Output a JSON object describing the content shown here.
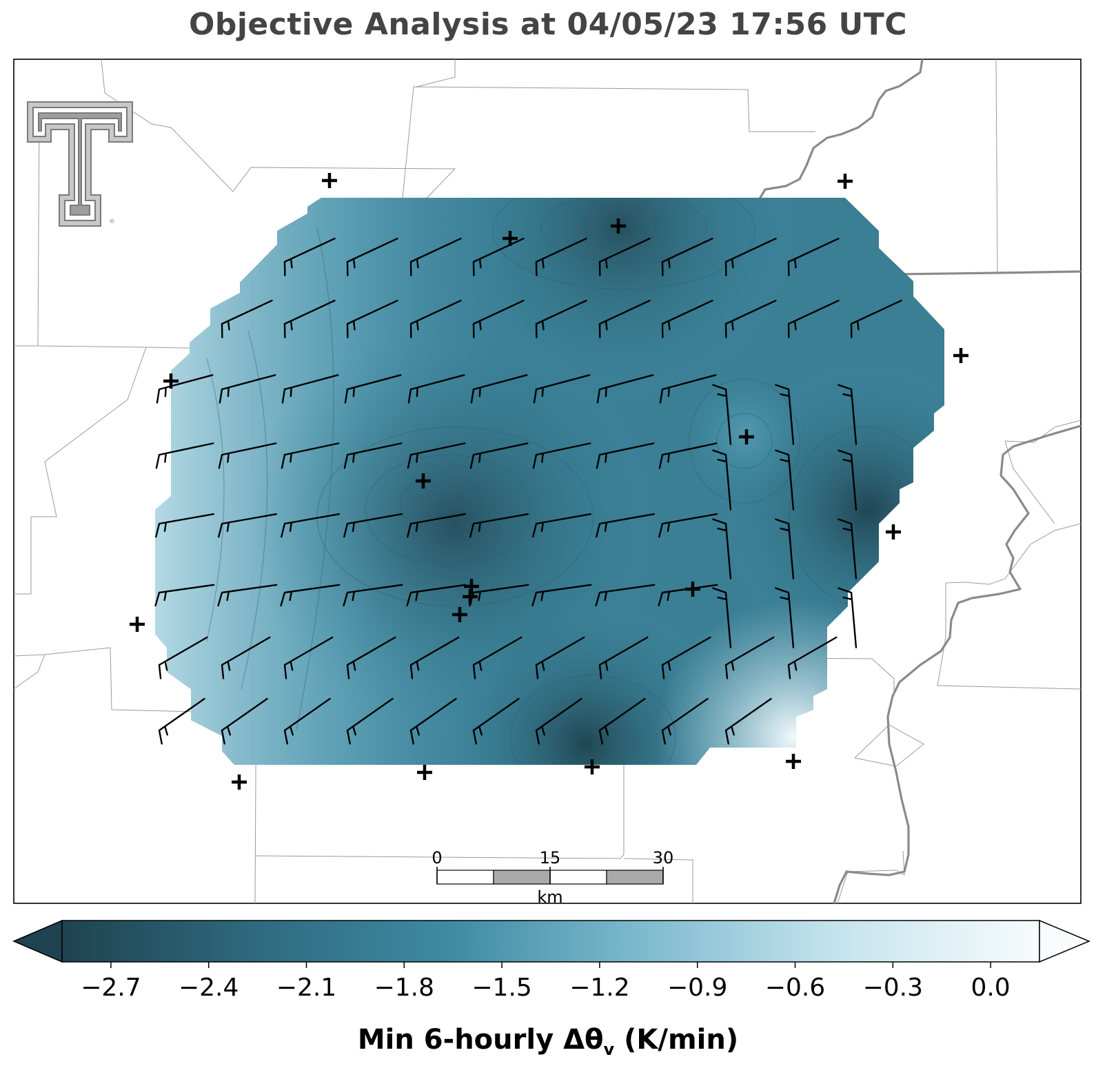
{
  "title": "Objective Analysis at 04/05/23 17:56 UTC",
  "colorbar": {
    "label_main": "Min 6-hourly Δθ",
    "label_sub": "v",
    "label_unit": " (K/min)",
    "ticks": [
      "−2.7",
      "−2.4",
      "−2.1",
      "−1.8",
      "−1.5",
      "−1.2",
      "−0.9",
      "−0.6",
      "−0.3",
      "0.0"
    ],
    "tick_values": [
      -2.7,
      -2.4,
      -2.1,
      -1.8,
      -1.5,
      -1.2,
      -0.9,
      -0.6,
      -0.3,
      0.0
    ],
    "vmin": -2.85,
    "vmax": 0.15,
    "extend": "both",
    "colors": {
      "min": "#1f4350",
      "mid": "#3e8ba3",
      "light": "#a9d4e2",
      "max": "#f6fbfd"
    }
  },
  "scalebar": {
    "labels": [
      "0",
      "15",
      "30"
    ],
    "unit": "km"
  },
  "logo": "texas-tech-double-t",
  "field_colors": {
    "dark": "#2b5868",
    "medium": "#3d7f96",
    "light": "#8fc4d6",
    "lightest": "#d6ecf3"
  },
  "station_count": 21,
  "wind_barb_rows": 8
}
